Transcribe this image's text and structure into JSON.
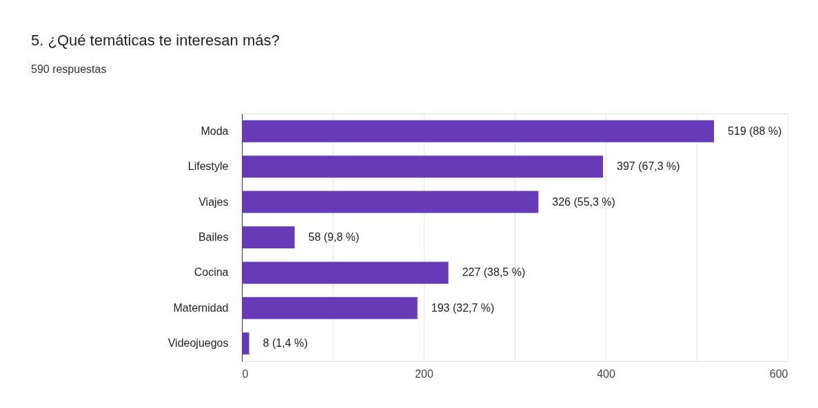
{
  "chart_data": {
    "type": "bar",
    "orientation": "horizontal",
    "title": "5. ¿Qué temáticas te interesan más?",
    "subtitle": "590 respuestas",
    "categories": [
      "Moda",
      "Lifestyle",
      "Viajes",
      "Bailes",
      "Cocina",
      "Maternidad",
      "Videojuegos"
    ],
    "values": [
      519,
      397,
      326,
      58,
      227,
      193,
      8
    ],
    "value_labels": [
      "519 (88 %)",
      "397 (67,3 %)",
      "326 (55,3 %)",
      "58 (9,8 %)",
      "227 (38,5 %)",
      "193 (32,7 %)",
      "8 (1,4 %)"
    ],
    "color": "#673ab7",
    "xlim": [
      0,
      600
    ],
    "xticks": [
      0,
      {
        "value": 100,
        "label": null
      },
      200,
      {
        "value": 300,
        "label": null
      },
      400,
      {
        "value": 500,
        "label": null
      },
      600
    ],
    "grid": "x"
  }
}
